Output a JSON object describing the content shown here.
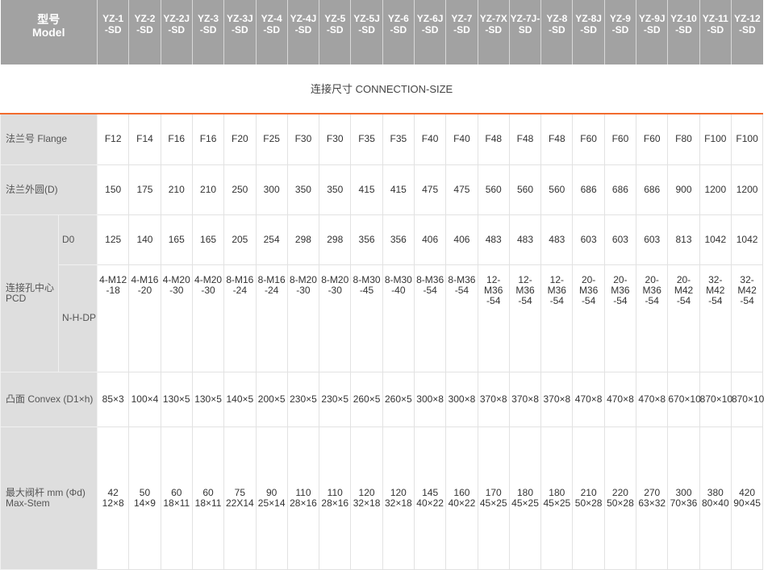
{
  "header": {
    "model_label_cn": "型号",
    "model_label_en": "Model",
    "models": [
      [
        "YZ-1",
        "-SD"
      ],
      [
        "YZ-2",
        "-SD"
      ],
      [
        "YZ-2J",
        "-SD"
      ],
      [
        "YZ-3",
        "-SD"
      ],
      [
        "YZ-3J",
        "-SD"
      ],
      [
        "YZ-4",
        "-SD"
      ],
      [
        "YZ-4J",
        "-SD"
      ],
      [
        "YZ-5",
        "-SD"
      ],
      [
        "YZ-5J",
        "-SD"
      ],
      [
        "YZ-6",
        "-SD"
      ],
      [
        "YZ-6J",
        "-SD"
      ],
      [
        "YZ-7",
        "-SD"
      ],
      [
        "YZ-7X",
        "-SD"
      ],
      [
        "YZ-7J-",
        "SD"
      ],
      [
        "YZ-8",
        "-SD"
      ],
      [
        "YZ-8J",
        "-SD"
      ],
      [
        "YZ-9",
        "-SD"
      ],
      [
        "YZ-9J",
        "-SD"
      ],
      [
        "YZ-10",
        "-SD"
      ],
      [
        "YZ-11",
        "-SD"
      ],
      [
        "YZ-12",
        "-SD"
      ]
    ]
  },
  "section_title": "连接尺寸 CONNECTION-SIZE",
  "rows": {
    "flange": {
      "label": "法兰号 Flange",
      "values": [
        "F12",
        "F14",
        "F16",
        "F16",
        "F20",
        "F25",
        "F30",
        "F30",
        "F35",
        "F35",
        "F40",
        "F40",
        "F48",
        "F48",
        "F48",
        "F60",
        "F60",
        "F60",
        "F80",
        "F100",
        "F100"
      ]
    },
    "outer_d": {
      "label": "法兰外圆(D)",
      "values": [
        "150",
        "175",
        "210",
        "210",
        "250",
        "300",
        "350",
        "350",
        "415",
        "415",
        "475",
        "475",
        "560",
        "560",
        "560",
        "686",
        "686",
        "686",
        "900",
        "1200",
        "1200"
      ]
    },
    "pcd": {
      "label_cn": "连接孔中心",
      "label_en": "PCD",
      "d0": {
        "label": "D0",
        "values": [
          "125",
          "140",
          "165",
          "165",
          "205",
          "254",
          "298",
          "298",
          "356",
          "356",
          "406",
          "406",
          "483",
          "483",
          "483",
          "603",
          "603",
          "603",
          "813",
          "1042",
          "1042"
        ]
      },
      "nhdp": {
        "label": "N-H-DP",
        "values": [
          [
            "4-M12",
            "-18"
          ],
          [
            "4-M16",
            "-20"
          ],
          [
            "4-M20",
            "-30"
          ],
          [
            "4-M20",
            "-30"
          ],
          [
            "8-M16",
            "-24"
          ],
          [
            "8-M16",
            "-24"
          ],
          [
            "8-M20",
            "-30"
          ],
          [
            "8-M20",
            "-30"
          ],
          [
            "8-M30",
            "-45"
          ],
          [
            "8-M30",
            "-40"
          ],
          [
            "8-M36",
            "-54"
          ],
          [
            "8-M36",
            "-54"
          ],
          [
            "12-M36",
            "-54"
          ],
          [
            "12-M36",
            "-54"
          ],
          [
            "12-M36",
            "-54"
          ],
          [
            "20-M36",
            "-54"
          ],
          [
            "20-M36",
            "-54"
          ],
          [
            "20-M36",
            "-54"
          ],
          [
            "20-M42",
            "-54"
          ],
          [
            "32-M42",
            "-54"
          ],
          [
            "32-M42",
            "-54"
          ]
        ]
      }
    },
    "convex": {
      "label": "凸面 Convex (D1×h)",
      "values": [
        "85×3",
        "100×4",
        "130×5",
        "130×5",
        "140×5",
        "200×5",
        "230×5",
        "230×5",
        "260×5",
        "260×5",
        "300×8",
        "300×8",
        "370×8",
        "370×8",
        "370×8",
        "470×8",
        "470×8",
        "470×8",
        "670×10",
        "870×10",
        "870×10"
      ]
    },
    "stem": {
      "label_cn": "最大阀杆 mm (Φd)",
      "label_en": "Max-Stem",
      "values": [
        [
          "42",
          "12×8"
        ],
        [
          "50",
          "14×9"
        ],
        [
          "60",
          "18×11"
        ],
        [
          "60",
          "18×11"
        ],
        [
          "75",
          "22X14"
        ],
        [
          "90",
          "25×14"
        ],
        [
          "110",
          "28×16"
        ],
        [
          "110",
          "28×16"
        ],
        [
          "120",
          "32×18"
        ],
        [
          "120",
          "32×18"
        ],
        [
          "145",
          "40×22"
        ],
        [
          "160",
          "40×22"
        ],
        [
          "170",
          "45×25"
        ],
        [
          "180",
          "45×25"
        ],
        [
          "180",
          "45×25"
        ],
        [
          "210",
          "50×28"
        ],
        [
          "220",
          "50×28"
        ],
        [
          "270",
          "63×32"
        ],
        [
          "300",
          "70×36"
        ],
        [
          "380",
          "80×40"
        ],
        [
          "420",
          "90×45"
        ]
      ]
    }
  }
}
